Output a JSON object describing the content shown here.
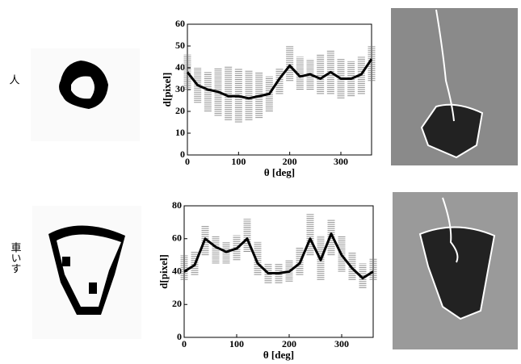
{
  "row_labels": [
    "人",
    "車いす"
  ],
  "chart_data": [
    {
      "type": "line",
      "xlabel": "θ [deg]",
      "ylabel": "d[pixel]",
      "xlim": [
        0,
        360
      ],
      "xticks": [
        0,
        100,
        200,
        300
      ],
      "ylim": [
        0,
        60
      ],
      "yticks": [
        0,
        10,
        20,
        30,
        40,
        50,
        60
      ],
      "x": [
        0,
        20,
        40,
        60,
        80,
        100,
        120,
        140,
        160,
        180,
        200,
        220,
        240,
        260,
        280,
        300,
        320,
        340,
        360
      ],
      "color": "#000000",
      "values": [
        38,
        32,
        30,
        29,
        27,
        27,
        26,
        27,
        28,
        35,
        41,
        36,
        37,
        35,
        38,
        35,
        35,
        37,
        44
      ],
      "band": {
        "color": "#777777",
        "low": [
          30,
          24,
          20,
          18,
          16,
          15,
          16,
          17,
          20,
          28,
          34,
          30,
          30,
          28,
          28,
          26,
          27,
          28,
          34
        ],
        "high": [
          46,
          40,
          38,
          40,
          41,
          40,
          39,
          38,
          36,
          40,
          50,
          45,
          44,
          46,
          48,
          44,
          43,
          45,
          50
        ]
      }
    },
    {
      "type": "line",
      "xlabel": "θ [deg]",
      "ylabel": "d[pixel]",
      "xlim": [
        0,
        360
      ],
      "xticks": [
        0,
        100,
        200,
        300
      ],
      "ylim": [
        0,
        80
      ],
      "yticks": [
        0,
        20,
        40,
        60,
        80
      ],
      "x": [
        0,
        20,
        40,
        60,
        80,
        100,
        120,
        140,
        160,
        180,
        200,
        220,
        240,
        260,
        280,
        300,
        320,
        340,
        360
      ],
      "color": "#000000",
      "values": [
        40,
        44,
        60,
        55,
        52,
        54,
        60,
        45,
        39,
        39,
        40,
        45,
        60,
        47,
        63,
        50,
        42,
        36,
        40
      ],
      "band": {
        "color": "#777777",
        "low": [
          35,
          38,
          50,
          45,
          45,
          47,
          52,
          38,
          33,
          33,
          34,
          38,
          50,
          35,
          50,
          40,
          35,
          30,
          35
        ],
        "high": [
          50,
          52,
          68,
          62,
          58,
          62,
          72,
          58,
          45,
          45,
          47,
          55,
          75,
          62,
          72,
          62,
          52,
          45,
          48
        ]
      }
    }
  ]
}
